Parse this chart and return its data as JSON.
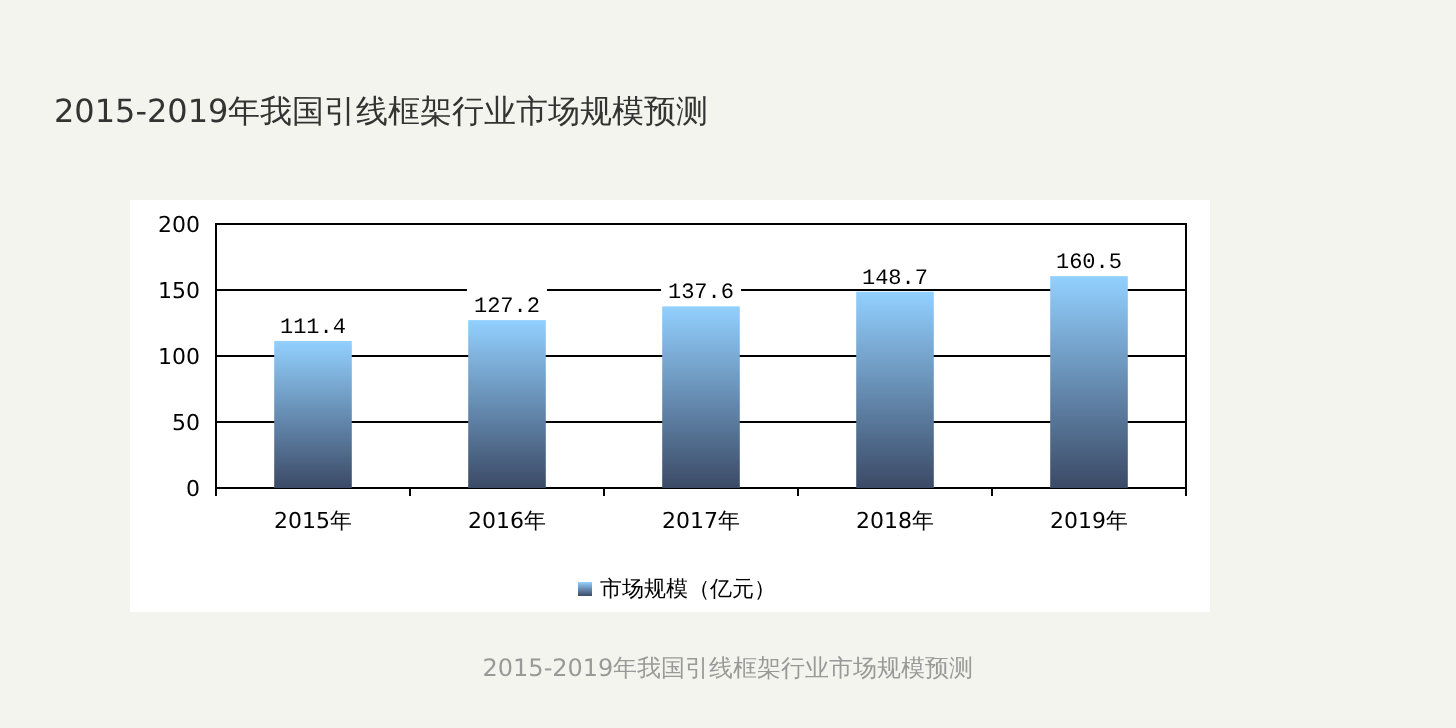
{
  "chart_data": {
    "type": "bar",
    "title": "2015-2019年我国引线框架行业市场规模预测",
    "categories": [
      "2015年",
      "2016年",
      "2017年",
      "2018年",
      "2019年"
    ],
    "series": [
      {
        "name": "市场规模（亿元）",
        "color": "#7fb4e8",
        "values": [
          111.4,
          127.2,
          137.6,
          148.7,
          160.5
        ]
      }
    ],
    "ylim": [
      0,
      200
    ],
    "yticks": [
      0,
      50,
      100,
      150,
      200
    ],
    "grid": "y",
    "legend": "bottom",
    "data_labels": true,
    "annotations": [
      "2015-2019年我国引线框架行业市场规模预测"
    ]
  }
}
